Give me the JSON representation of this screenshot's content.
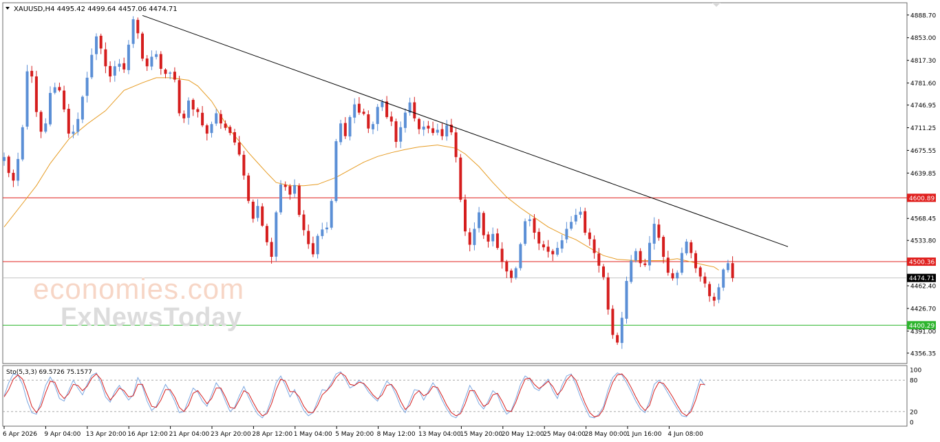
{
  "chart_data": {
    "type": "candlestick",
    "symbol_header": {
      "symbol": "XAUUSD,H4",
      "open": "4495.42",
      "high": "4499.64",
      "low": "4457.06",
      "close": "4474.71"
    },
    "y_range": [
      4340,
      4908
    ],
    "y_ticks": [
      "4888.70",
      "4853.00",
      "4817.30",
      "4781.60",
      "4746.95",
      "4711.25",
      "4675.55",
      "4639.85",
      "4568.45",
      "4533.80",
      "4462.40",
      "4426.70",
      "4391.00",
      "4356.35"
    ],
    "x_ticks": [
      "6 Apr 2026",
      "9 Apr 04:00",
      "13 Apr 20:00",
      "16 Apr 12:00",
      "21 Apr 04:00",
      "23 Apr 20:00",
      "28 Apr 12:00",
      "1 May 04:00",
      "5 May 20:00",
      "8 May 12:00",
      "13 May 04:00",
      "15 May 20:00",
      "20 May 12:00",
      "25 May 04:00",
      "28 May 00:00",
      "1 Jun 16:00",
      "4 Jun 08:00"
    ],
    "close_path": [
      4665,
      4640,
      4628,
      4662,
      4712,
      4800,
      4792,
      4736,
      4705,
      4718,
      4766,
      4775,
      4770,
      4740,
      4702,
      4705,
      4725,
      4760,
      4790,
      4826,
      4855,
      4836,
      4808,
      4792,
      4808,
      4812,
      4803,
      4842,
      4882,
      4860,
      4820,
      4808,
      4823,
      4827,
      4804,
      4796,
      4798,
      4787,
      4734,
      4726,
      4754,
      4740,
      4736,
      4715,
      4702,
      4717,
      4734,
      4718,
      4711,
      4703,
      4688,
      4669,
      4636,
      4596,
      4568,
      4588,
      4557,
      4531,
      4508,
      4578,
      4622,
      4618,
      4606,
      4621,
      4574,
      4550,
      4528,
      4512,
      4541,
      4551,
      4554,
      4596,
      4690,
      4718,
      4698,
      4728,
      4748,
      4735,
      4733,
      4710,
      4717,
      4744,
      4752,
      4728,
      4721,
      4689,
      4712,
      4735,
      4751,
      4726,
      4709,
      4713,
      4710,
      4703,
      4708,
      4698,
      4715,
      4704,
      4665,
      4598,
      4548,
      4527,
      4552,
      4578,
      4542,
      4532,
      4544,
      4522,
      4500,
      4485,
      4475,
      4490,
      4528,
      4564,
      4567,
      4546,
      4529,
      4523,
      4516,
      4512,
      4522,
      4534,
      4552,
      4563,
      4574,
      4579,
      4546,
      4536,
      4514,
      4494,
      4476,
      4425,
      4385,
      4373,
      4412,
      4470,
      4502,
      4517,
      4498,
      4495,
      4530,
      4560,
      4538,
      4508,
      4483,
      4474,
      4483,
      4514,
      4532,
      4514,
      4490,
      4477,
      4466,
      4446,
      4439,
      4460,
      4488,
      4498,
      4474.71
    ],
    "ma_points": [
      [
        0,
        4555
      ],
      [
        4,
        4592
      ],
      [
        7,
        4620
      ],
      [
        10,
        4655
      ],
      [
        14,
        4693
      ],
      [
        18,
        4717
      ],
      [
        22,
        4738
      ],
      [
        26,
        4770
      ],
      [
        30,
        4782
      ],
      [
        33,
        4790
      ],
      [
        36,
        4790
      ],
      [
        40,
        4786
      ],
      [
        42,
        4777
      ],
      [
        45,
        4753
      ],
      [
        47,
        4730
      ],
      [
        49,
        4707
      ],
      [
        51,
        4690
      ],
      [
        53,
        4672
      ],
      [
        55,
        4656
      ],
      [
        57,
        4640
      ],
      [
        59,
        4625
      ],
      [
        62,
        4620
      ],
      [
        65,
        4620
      ],
      [
        68,
        4622
      ],
      [
        72,
        4633
      ],
      [
        75,
        4645
      ],
      [
        78,
        4657
      ],
      [
        81,
        4666
      ],
      [
        84,
        4672
      ],
      [
        87,
        4677
      ],
      [
        90,
        4681
      ],
      [
        94,
        4684
      ],
      [
        98,
        4679
      ],
      [
        100,
        4670
      ],
      [
        103,
        4650
      ],
      [
        106,
        4625
      ],
      [
        109,
        4602
      ],
      [
        112,
        4585
      ],
      [
        115,
        4570
      ],
      [
        118,
        4555
      ],
      [
        121,
        4544
      ],
      [
        124,
        4535
      ],
      [
        127,
        4522
      ],
      [
        130,
        4510
      ],
      [
        133,
        4504
      ],
      [
        137,
        4502
      ],
      [
        140,
        4502
      ],
      [
        143,
        4502
      ],
      [
        146,
        4505
      ],
      [
        149,
        4500
      ],
      [
        152,
        4495
      ],
      [
        154,
        4492
      ],
      [
        155,
        4487
      ]
    ],
    "trendline": {
      "from_bar": 30,
      "from_price": 4888,
      "to_bar": 170,
      "to_price": 4524
    },
    "levels": [
      {
        "price": "4600.89",
        "value": 4600.89,
        "color": "#e0201e"
      },
      {
        "price": "4500.36",
        "value": 4500.36,
        "color": "#e0201e"
      },
      {
        "price": "4400.29",
        "value": 4400.29,
        "color": "#2db52d"
      }
    ],
    "current_price": {
      "label": "4474.71",
      "value": 4474.71
    },
    "colors": {
      "bull": "#5b8fd6",
      "bear": "#d51d1d",
      "ma": "#e69b22",
      "trend": "#000000"
    },
    "stochastic": {
      "label": "Sto(5,3,3) 69.5726 75.1577",
      "levels": [
        "100",
        "80",
        "20",
        "0"
      ],
      "main": [
        50,
        75,
        92,
        90,
        72,
        40,
        18,
        15,
        38,
        70,
        86,
        70,
        45,
        40,
        60,
        80,
        65,
        52,
        72,
        89,
        94,
        75,
        48,
        38,
        58,
        70,
        55,
        42,
        52,
        85,
        68,
        40,
        22,
        30,
        52,
        72,
        58,
        40,
        18,
        20,
        42,
        65,
        57,
        40,
        30,
        52,
        75,
        62,
        40,
        20,
        28,
        50,
        68,
        48,
        30,
        15,
        8,
        20,
        45,
        75,
        88,
        70,
        48,
        62,
        40,
        22,
        12,
        18,
        40,
        62,
        60,
        75,
        92,
        96,
        82,
        65,
        70,
        80,
        72,
        58,
        48,
        40,
        60,
        78,
        70,
        52,
        30,
        18,
        40,
        62,
        60,
        42,
        58,
        75,
        62,
        42,
        25,
        12,
        8,
        20,
        45,
        70,
        55,
        35,
        25,
        40,
        60,
        52,
        30,
        15,
        22,
        45,
        72,
        88,
        82,
        65,
        60,
        72,
        82,
        60,
        45,
        70,
        88,
        92,
        72,
        48,
        28,
        10,
        8,
        15,
        30,
        62,
        85,
        94,
        90,
        75,
        58,
        40,
        25,
        18,
        40,
        72,
        80,
        70,
        55,
        40,
        25,
        12,
        10,
        25,
        55,
        82,
        70
      ],
      "signal": [
        48,
        62,
        82,
        90,
        82,
        58,
        30,
        18,
        30,
        56,
        78,
        76,
        55,
        45,
        54,
        72,
        70,
        60,
        68,
        84,
        92,
        82,
        58,
        42,
        52,
        65,
        60,
        48,
        50,
        72,
        72,
        50,
        30,
        28,
        42,
        62,
        62,
        48,
        28,
        20,
        32,
        55,
        60,
        48,
        35,
        45,
        65,
        65,
        48,
        28,
        26,
        42,
        60,
        55,
        38,
        22,
        12,
        16,
        35,
        62,
        82,
        78,
        58,
        58,
        48,
        30,
        18,
        18,
        32,
        52,
        60,
        70,
        85,
        94,
        88,
        72,
        70,
        76,
        74,
        64,
        52,
        44,
        52,
        70,
        72,
        60,
        40,
        24,
        32,
        52,
        60,
        50,
        55,
        68,
        66,
        50,
        32,
        18,
        12,
        16,
        35,
        60,
        60,
        44,
        30,
        35,
        52,
        55,
        40,
        22,
        20,
        38,
        62,
        82,
        84,
        72,
        64,
        70,
        78,
        68,
        52,
        62,
        80,
        90,
        80,
        58,
        36,
        18,
        10,
        12,
        25,
        52,
        76,
        90,
        92,
        82,
        66,
        48,
        32,
        22,
        32,
        60,
        76,
        74,
        62,
        48,
        32,
        18,
        12,
        20,
        42,
        72,
        72
      ]
    }
  },
  "watermark": {
    "line1": "economies.com",
    "line2": "FxNewsToday"
  }
}
